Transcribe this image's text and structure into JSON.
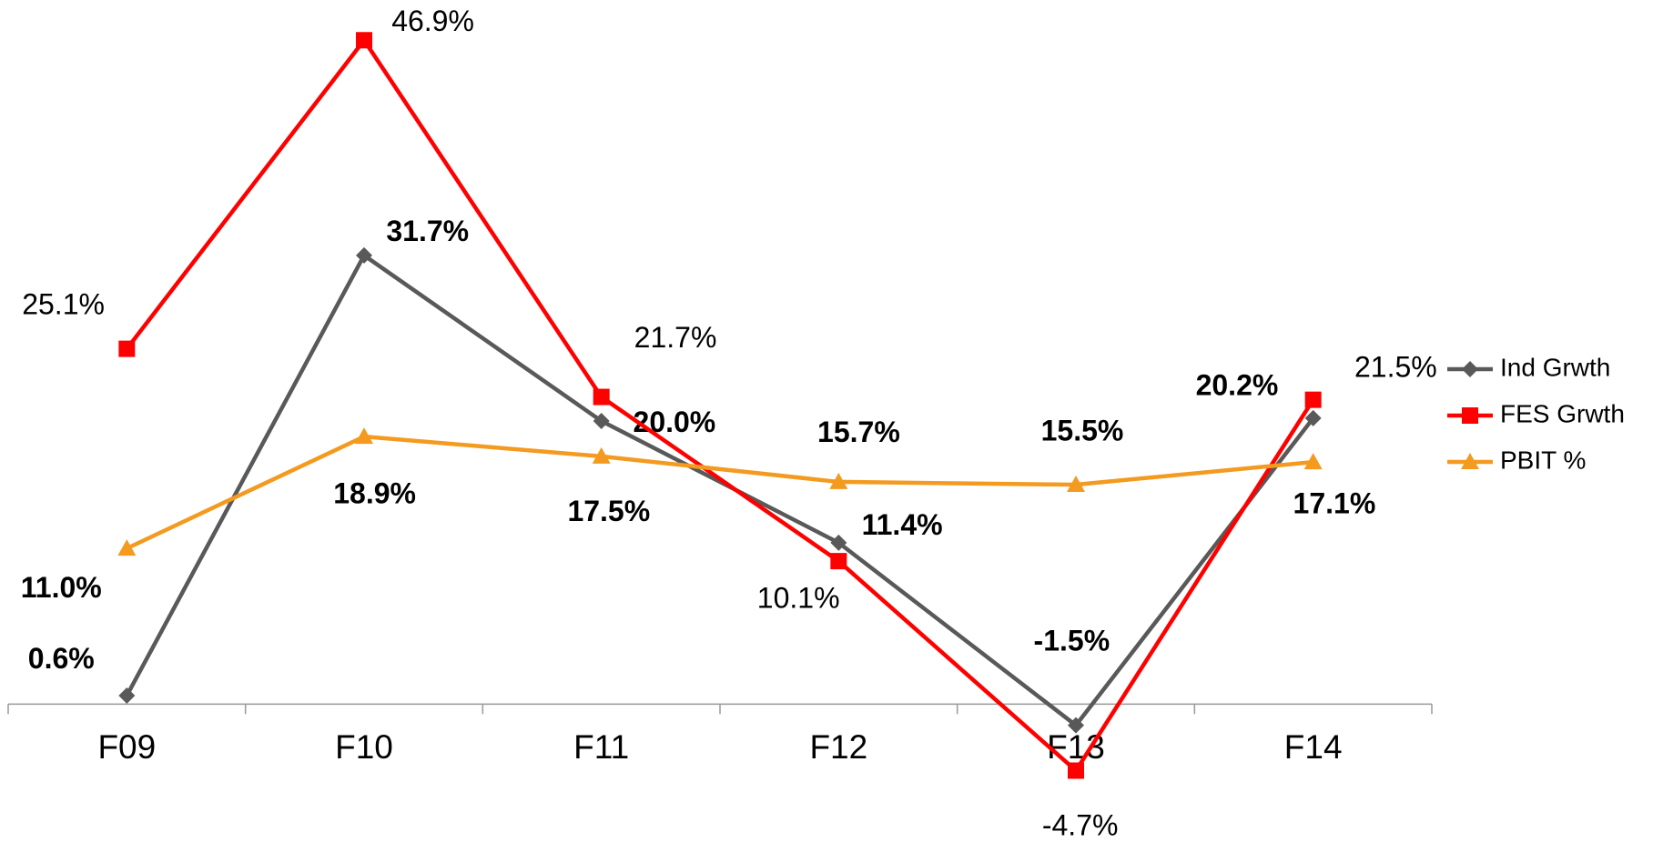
{
  "chart_data": {
    "type": "line",
    "categories": [
      "F09",
      "F10",
      "F11",
      "F12",
      "F13",
      "F14"
    ],
    "series": [
      {
        "name": "Ind Grwth",
        "color": "#595959",
        "marker": "diamond",
        "values": [
          0.6,
          31.7,
          20.0,
          11.4,
          -1.5,
          20.2
        ],
        "value_labels": [
          "0.6%",
          "31.7%",
          "20.0%",
          "11.4%",
          "-1.5%",
          "20.2%"
        ]
      },
      {
        "name": "FES Grwth",
        "color": "#ff0000",
        "marker": "square",
        "values": [
          25.1,
          46.9,
          21.7,
          10.1,
          -4.7,
          21.5
        ],
        "value_labels": [
          "25.1%",
          "46.9%",
          "21.7%",
          "10.1%",
          "-4.7%",
          "21.5%"
        ]
      },
      {
        "name": "PBIT %",
        "color": "#f39a1f",
        "marker": "triangle",
        "values": [
          11.0,
          18.9,
          17.5,
          15.7,
          15.5,
          17.1
        ],
        "value_labels": [
          "11.0%",
          "18.9%",
          "17.5%",
          "15.7%",
          "15.5%",
          "17.1%"
        ]
      }
    ],
    "ylim": [
      -10,
      50
    ],
    "legend": "right"
  }
}
